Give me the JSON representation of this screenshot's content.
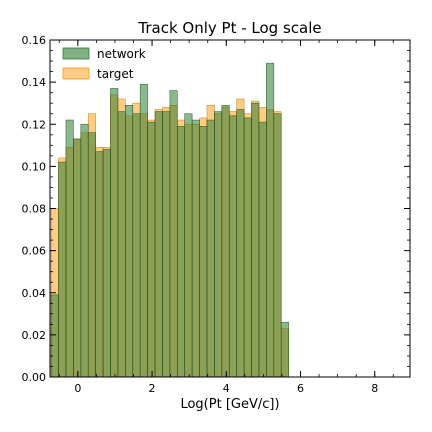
{
  "chart_data": {
    "type": "bar",
    "title": "Track Only Pt - Log scale",
    "xlabel": "Log(Pt [GeV/c])",
    "ylabel": "",
    "xlim": [
      -0.75,
      8.95
    ],
    "ylim": [
      0,
      0.16
    ],
    "xticks": [
      0,
      2,
      4,
      6,
      8
    ],
    "xtick_labels": [
      "0",
      "2",
      "4",
      "6",
      "8"
    ],
    "yticks": [
      0.0,
      0.02,
      0.04,
      0.06,
      0.08,
      0.1,
      0.12,
      0.14,
      0.16
    ],
    "ytick_labels": [
      "0.00",
      "0.02",
      "0.04",
      "0.06",
      "0.08",
      "0.10",
      "0.12",
      "0.14",
      "0.16"
    ],
    "bin_start": -0.72,
    "bin_width": 0.2,
    "grid": false,
    "legend_position": "top-left",
    "series": [
      {
        "name": "network",
        "color": "#2e7d32",
        "values": [
          0.039,
          0.102,
          0.122,
          0.113,
          0.12,
          0.116,
          0.107,
          0.108,
          0.137,
          0.126,
          0.129,
          0.125,
          0.139,
          0.121,
          0.126,
          0.126,
          0.136,
          0.119,
          0.125,
          0.122,
          0.119,
          0.122,
          0.126,
          0.129,
          0.124,
          0.127,
          0.123,
          0.13,
          0.121,
          0.149,
          0.125,
          0.026
        ]
      },
      {
        "name": "target",
        "color": "#ffb74d",
        "values": [
          0.08,
          0.104,
          0.109,
          0.113,
          0.116,
          0.125,
          0.109,
          0.109,
          0.134,
          0.132,
          0.124,
          0.13,
          0.125,
          0.122,
          0.127,
          0.128,
          0.129,
          0.122,
          0.12,
          0.12,
          0.123,
          0.129,
          0.125,
          0.128,
          0.126,
          0.132,
          0.125,
          0.131,
          0.128,
          0.127,
          0.126,
          0.023
        ]
      }
    ]
  }
}
